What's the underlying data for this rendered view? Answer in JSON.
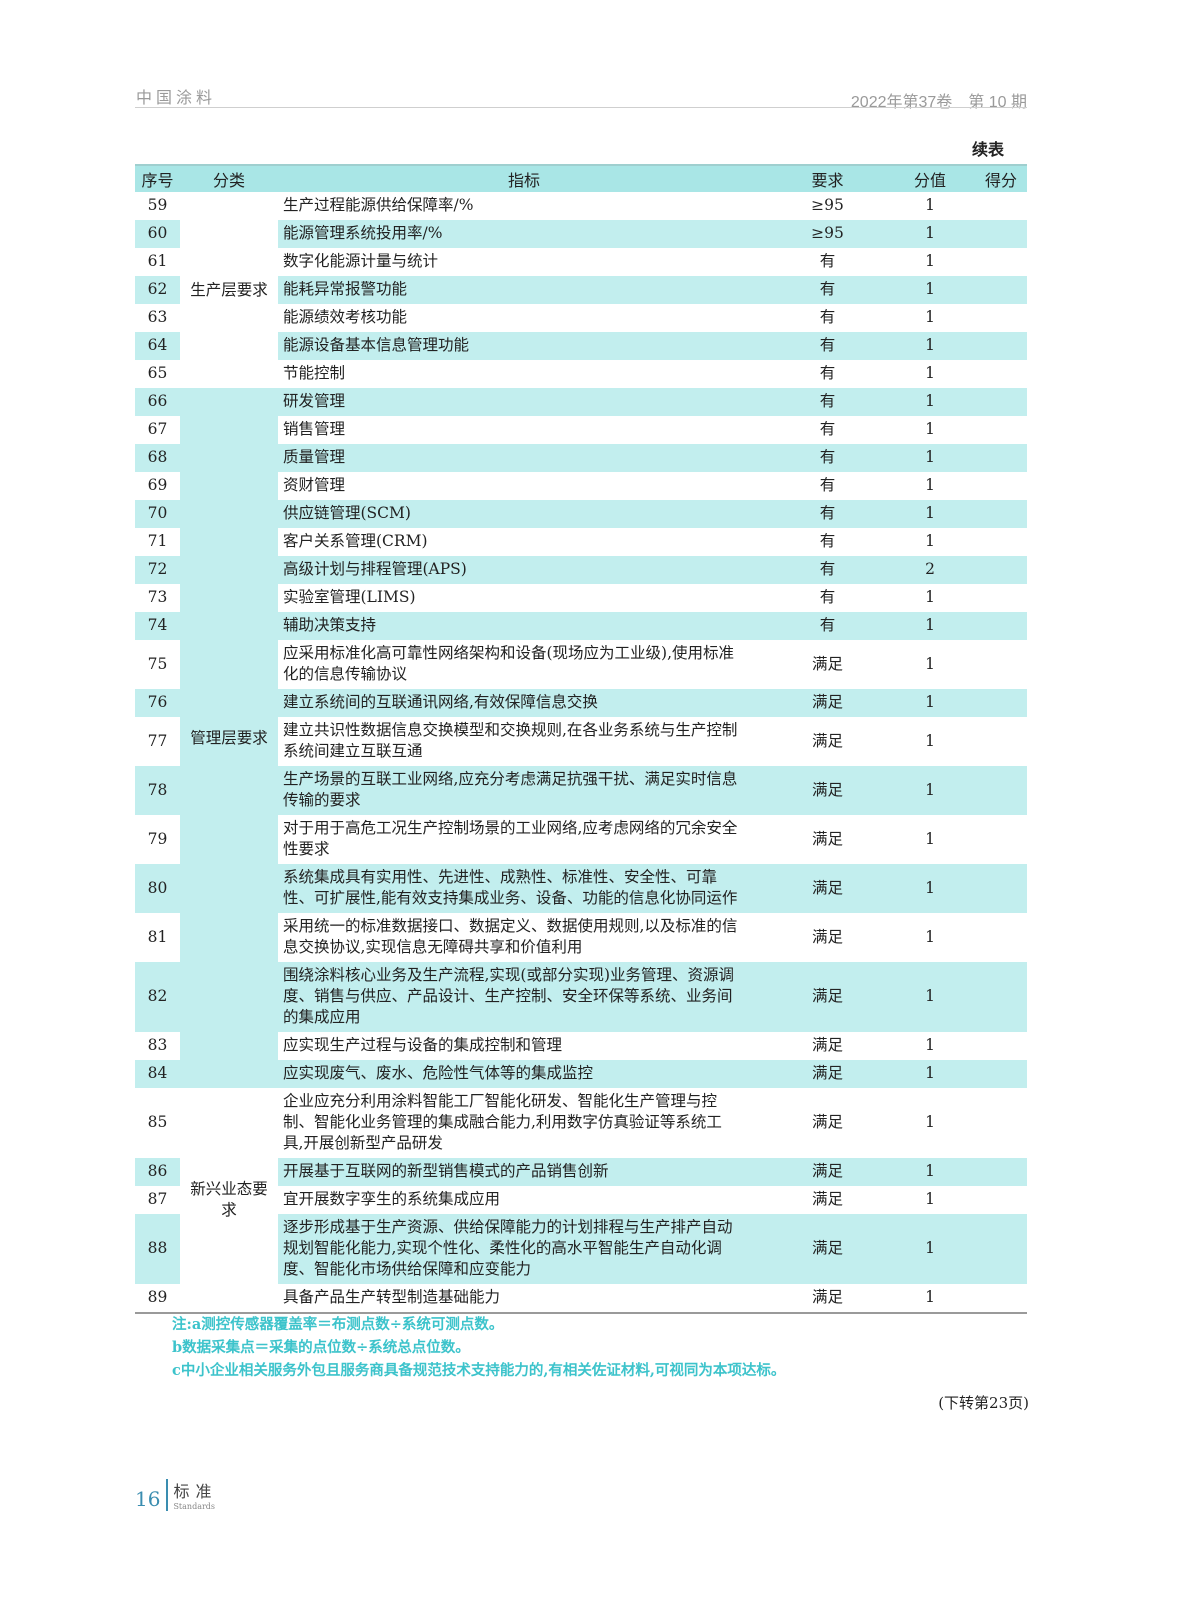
{
  "header": {
    "journal": "中国涂料",
    "issue": "2022年第37卷　第 10 期"
  },
  "continued_label": "续表",
  "table": {
    "columns": [
      "序号",
      "分类",
      "指标",
      "要求",
      "分值",
      "得分"
    ],
    "groups": [
      {
        "category": "生产层要求",
        "teal": false,
        "rows": [
          {
            "no": "59",
            "indicator": "生产过程能源供给保障率/%",
            "req": "≥95",
            "score": "1"
          },
          {
            "no": "60",
            "indicator": "能源管理系统投用率/%",
            "req": "≥95",
            "score": "1"
          },
          {
            "no": "61",
            "indicator": "数字化能源计量与统计",
            "req": "有",
            "score": "1"
          },
          {
            "no": "62",
            "indicator": "能耗异常报警功能",
            "req": "有",
            "score": "1"
          },
          {
            "no": "63",
            "indicator": "能源绩效考核功能",
            "req": "有",
            "score": "1"
          },
          {
            "no": "64",
            "indicator": "能源设备基本信息管理功能",
            "req": "有",
            "score": "1"
          },
          {
            "no": "65",
            "indicator": "节能控制",
            "req": "有",
            "score": "1"
          }
        ]
      },
      {
        "category": "管理层要求",
        "teal": true,
        "rows": [
          {
            "no": "66",
            "indicator": "研发管理",
            "req": "有",
            "score": "1"
          },
          {
            "no": "67",
            "indicator": "销售管理",
            "req": "有",
            "score": "1"
          },
          {
            "no": "68",
            "indicator": "质量管理",
            "req": "有",
            "score": "1"
          },
          {
            "no": "69",
            "indicator": "资财管理",
            "req": "有",
            "score": "1"
          },
          {
            "no": "70",
            "indicator": "供应链管理(SCM)",
            "req": "有",
            "score": "1"
          },
          {
            "no": "71",
            "indicator": "客户关系管理(CRM)",
            "req": "有",
            "score": "1"
          },
          {
            "no": "72",
            "indicator": "高级计划与排程管理(APS)",
            "req": "有",
            "score": "2"
          },
          {
            "no": "73",
            "indicator": "实验室管理(LIMS)",
            "req": "有",
            "score": "1"
          },
          {
            "no": "74",
            "indicator": "辅助决策支持",
            "req": "有",
            "score": "1"
          },
          {
            "no": "75",
            "indicator": "应采用标准化高可靠性网络架构和设备(现场应为工业级),使用标准化的信息传输协议",
            "req": "满足",
            "score": "1"
          },
          {
            "no": "76",
            "indicator": "建立系统间的互联通讯网络,有效保障信息交换",
            "req": "满足",
            "score": "1"
          },
          {
            "no": "77",
            "indicator": "建立共识性数据信息交换模型和交换规则,在各业务系统与生产控制系统间建立互联互通",
            "req": "满足",
            "score": "1"
          },
          {
            "no": "78",
            "indicator": "生产场景的互联工业网络,应充分考虑满足抗强干扰、满足实时信息传输的要求",
            "req": "满足",
            "score": "1"
          },
          {
            "no": "79",
            "indicator": "对于用于高危工况生产控制场景的工业网络,应考虑网络的冗余安全性要求",
            "req": "满足",
            "score": "1"
          },
          {
            "no": "80",
            "indicator": "系统集成具有实用性、先进性、成熟性、标准性、安全性、可靠性、可扩展性,能有效支持集成业务、设备、功能的信息化协同运作",
            "req": "满足",
            "score": "1"
          },
          {
            "no": "81",
            "indicator": "采用统一的标准数据接口、数据定义、数据使用规则,以及标准的信息交换协议,实现信息无障碍共享和价值利用",
            "req": "满足",
            "score": "1"
          },
          {
            "no": "82",
            "indicator": "围绕涂料核心业务及生产流程,实现(或部分实现)业务管理、资源调度、销售与供应、产品设计、生产控制、安全环保等系统、业务间的集成应用",
            "req": "满足",
            "score": "1"
          },
          {
            "no": "83",
            "indicator": "应实现生产过程与设备的集成控制和管理",
            "req": "满足",
            "score": "1"
          },
          {
            "no": "84",
            "indicator": "应实现废气、废水、危险性气体等的集成监控",
            "req": "满足",
            "score": "1"
          }
        ]
      },
      {
        "category": "新兴业态要求",
        "teal": false,
        "rows": [
          {
            "no": "85",
            "indicator": "企业应充分利用涂料智能工厂智能化研发、智能化生产管理与控制、智能化业务管理的集成融合能力,利用数字仿真验证等系统工具,开展创新型产品研发",
            "req": "满足",
            "score": "1"
          },
          {
            "no": "86",
            "indicator": "开展基于互联网的新型销售模式的产品销售创新",
            "req": "满足",
            "score": "1"
          },
          {
            "no": "87",
            "indicator": "宜开展数字孪生的系统集成应用",
            "req": "满足",
            "score": "1"
          },
          {
            "no": "88",
            "indicator": "逐步形成基于生产资源、供给保障能力的计划排程与生产排产自动规划智能化能力,实现个性化、柔性化的高水平智能生产自动化调度、智能化市场供给保障和应变能力",
            "req": "满足",
            "score": "1"
          },
          {
            "no": "89",
            "indicator": "具备产品生产转型制造基础能力",
            "req": "满足",
            "score": "1"
          }
        ]
      }
    ]
  },
  "notes": [
    "注:a测控传感器覆盖率＝布测点数÷系统可测点数。",
    "b数据采集点＝采集的点位数÷系统总点位数。",
    "c中小企业相关服务外包且服务商具备规范技术支持能力的,有相关佐证材料,可视同为本项达标。"
  ],
  "continued_on": "(下转第23页)",
  "footer": {
    "page": "16",
    "section": "标准",
    "section_en": "Standards"
  },
  "colors": {
    "row_stripe": "#c2eeee",
    "header_bg": "#a9e6e6",
    "notes": "#3cc3cb",
    "footer_accent": "#3a8db0"
  }
}
